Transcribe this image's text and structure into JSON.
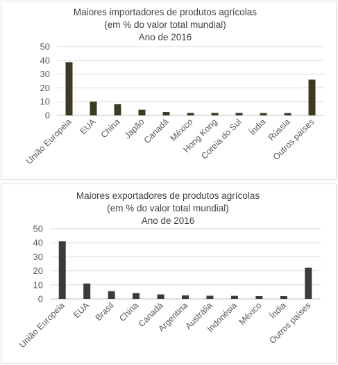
{
  "chart_data": [
    {
      "type": "bar",
      "title": [
        "Maiores importadores de produtos agrícolas",
        "(em % do valor total mundial)",
        "Ano de 2016"
      ],
      "categories": [
        "União Europeia",
        "EUA",
        "China",
        "Japão",
        "Canadá",
        "México",
        "Hong Kong",
        "Coreia do Sul",
        "Índia",
        "Rússia",
        "Outros países"
      ],
      "values": [
        38.7,
        10,
        8.1,
        4.2,
        2.5,
        1.8,
        1.8,
        1.8,
        1.7,
        1.7,
        26
      ],
      "ylim": [
        0,
        50
      ],
      "yticks": [
        "0",
        "10",
        "20",
        "30",
        "40",
        "50"
      ],
      "grid": true,
      "bar_color": "#3d3a22",
      "xlabel": "",
      "ylabel": ""
    },
    {
      "type": "bar",
      "title": [
        "Maiores exportadores de produtos agrícolas",
        "(em % do valor total mundial)",
        "Ano de 2016"
      ],
      "categories": [
        "União Europeia",
        "EUA",
        "Brasil",
        "China",
        "Canadá",
        "Argentina",
        "Austrália",
        "Indonésia",
        "México",
        "Índia",
        "Outros países"
      ],
      "values": [
        41,
        11,
        5.5,
        4.2,
        3.2,
        2.6,
        2.3,
        2.2,
        2,
        2,
        22.3
      ],
      "ylim": [
        0,
        50
      ],
      "yticks": [
        "0",
        "10",
        "20",
        "30",
        "40",
        "50"
      ],
      "grid": true,
      "bar_color": "#3b3b3b",
      "xlabel": "",
      "ylabel": ""
    }
  ]
}
